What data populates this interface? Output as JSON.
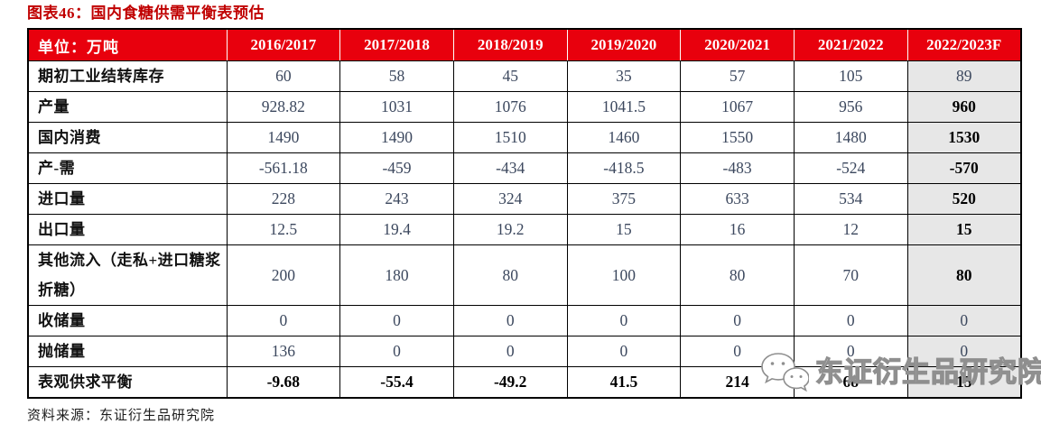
{
  "title": "图表46：国内食糖供需平衡表预估",
  "table": {
    "header": [
      "单位：万吨",
      "2016/2017",
      "2017/2018",
      "2018/2019",
      "2019/2020",
      "2020/2021",
      "2021/2022",
      "2022/2023F"
    ],
    "rows": [
      {
        "label": "期初工业结转库存",
        "values": [
          "60",
          "58",
          "45",
          "35",
          "57",
          "105",
          "89"
        ],
        "forecast_bold": false,
        "bold_all": false
      },
      {
        "label": "产量",
        "values": [
          "928.82",
          "1031",
          "1076",
          "1041.5",
          "1067",
          "956",
          "960"
        ],
        "forecast_bold": true,
        "bold_all": false
      },
      {
        "label": "国内消费",
        "values": [
          "1490",
          "1490",
          "1510",
          "1460",
          "1550",
          "1480",
          "1530"
        ],
        "forecast_bold": true,
        "bold_all": false
      },
      {
        "label": "产-需",
        "values": [
          "-561.18",
          "-459",
          "-434",
          "-418.5",
          "-483",
          "-524",
          "-570"
        ],
        "forecast_bold": true,
        "bold_all": false
      },
      {
        "label": "进口量",
        "values": [
          "228",
          "243",
          "324",
          "375",
          "633",
          "534",
          "520"
        ],
        "forecast_bold": true,
        "bold_all": false
      },
      {
        "label": "出口量",
        "values": [
          "12.5",
          "19.4",
          "19.2",
          "15",
          "16",
          "12",
          "15"
        ],
        "forecast_bold": true,
        "bold_all": false
      },
      {
        "label": "其他流入（走私+进口糖浆折糖）",
        "values": [
          "200",
          "180",
          "80",
          "100",
          "80",
          "70",
          "80"
        ],
        "forecast_bold": true,
        "bold_all": false
      },
      {
        "label": "收储量",
        "values": [
          "0",
          "0",
          "0",
          "0",
          "0",
          "0",
          "0"
        ],
        "forecast_bold": false,
        "bold_all": false
      },
      {
        "label": "抛储量",
        "values": [
          "136",
          "0",
          "0",
          "0",
          "0",
          "0",
          "0"
        ],
        "forecast_bold": false,
        "bold_all": false
      },
      {
        "label": "表观供求平衡",
        "values": [
          "-9.68",
          "-55.4",
          "-49.2",
          "41.5",
          "214",
          "68",
          "15"
        ],
        "forecast_bold": true,
        "bold_all": true
      }
    ]
  },
  "watermark": {
    "icon": "wechat-icon",
    "text": "东证衍生品研究院"
  },
  "source": "资料来源：东证衍生品研究院",
  "colors": {
    "title_red": "#c00000",
    "header_bg": "#e8000d",
    "header_text": "#ffffff",
    "forecast_col_bg": "#e7e7e7",
    "body_number": "#3c485e",
    "emphasis": "#000000"
  }
}
